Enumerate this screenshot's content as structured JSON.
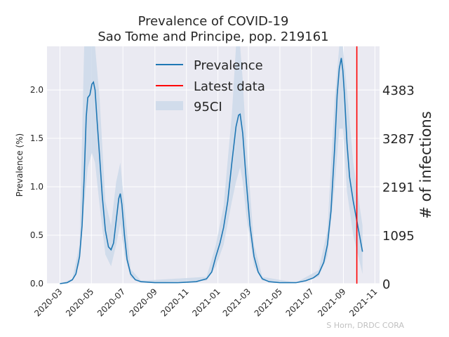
{
  "chart_data": {
    "type": "line",
    "title": "Prevalence of COVID-19",
    "subtitle": "Sao Tome and Principe, pop. 219161",
    "ylabel": "Prevalence (%)",
    "y2label": "# of infections",
    "credit": "S Horn, DRDC CORA",
    "xlim": [
      "2020-02-05",
      "2021-11-10"
    ],
    "ylim": [
      0,
      2.45
    ],
    "x_ticks": [
      "2020-03",
      "2020-05",
      "2020-07",
      "2020-09",
      "2020-11",
      "2021-01",
      "2021-03",
      "2021-05",
      "2021-07",
      "2021-09",
      "2021-11"
    ],
    "y_ticks": [
      0.0,
      0.5,
      1.0,
      1.5,
      2.0
    ],
    "y_tick_labels": [
      "0.0",
      "0.5",
      "1.0",
      "1.5",
      "2.0"
    ],
    "y2_ticks": [
      0,
      1095,
      2191,
      3287,
      4383
    ],
    "y2_tick_labels": [
      "0",
      "1095",
      "2191",
      "3287",
      "4383"
    ],
    "grid": true,
    "legend_position": "top-center",
    "legend": [
      "Prevalence",
      "Latest data",
      "95CI"
    ],
    "colors": {
      "prevalence": "#1f77b4",
      "latest": "#ff0000",
      "ci": "#cbd8e8",
      "grid": "#ffffff",
      "plot_bg": "#eaeaf2",
      "credit": "#c0c0c0"
    },
    "latest_date": "2021-09-27",
    "series": [
      {
        "name": "Prevalence",
        "points": [
          [
            "2020-03-01",
            0.0
          ],
          [
            "2020-03-15",
            0.01
          ],
          [
            "2020-03-25",
            0.04
          ],
          [
            "2020-04-01",
            0.1
          ],
          [
            "2020-04-08",
            0.28
          ],
          [
            "2020-04-13",
            0.6
          ],
          [
            "2020-04-17",
            1.1
          ],
          [
            "2020-04-21",
            1.72
          ],
          [
            "2020-04-24",
            1.92
          ],
          [
            "2020-04-28",
            1.95
          ],
          [
            "2020-05-02",
            2.06
          ],
          [
            "2020-05-05",
            2.08
          ],
          [
            "2020-05-08",
            2.0
          ],
          [
            "2020-05-12",
            1.68
          ],
          [
            "2020-05-17",
            1.3
          ],
          [
            "2020-05-22",
            0.9
          ],
          [
            "2020-05-28",
            0.55
          ],
          [
            "2020-06-03",
            0.38
          ],
          [
            "2020-06-08",
            0.35
          ],
          [
            "2020-06-13",
            0.42
          ],
          [
            "2020-06-18",
            0.65
          ],
          [
            "2020-06-23",
            0.88
          ],
          [
            "2020-06-26",
            0.93
          ],
          [
            "2020-06-29",
            0.82
          ],
          [
            "2020-07-04",
            0.5
          ],
          [
            "2020-07-09",
            0.25
          ],
          [
            "2020-07-16",
            0.1
          ],
          [
            "2020-07-25",
            0.04
          ],
          [
            "2020-08-05",
            0.02
          ],
          [
            "2020-09-01",
            0.01
          ],
          [
            "2020-10-15",
            0.01
          ],
          [
            "2020-11-20",
            0.02
          ],
          [
            "2020-12-10",
            0.05
          ],
          [
            "2020-12-20",
            0.12
          ],
          [
            "2020-12-28",
            0.28
          ],
          [
            "2021-01-05",
            0.42
          ],
          [
            "2021-01-12",
            0.58
          ],
          [
            "2021-01-20",
            0.85
          ],
          [
            "2021-01-28",
            1.25
          ],
          [
            "2021-02-05",
            1.62
          ],
          [
            "2021-02-10",
            1.74
          ],
          [
            "2021-02-13",
            1.75
          ],
          [
            "2021-02-18",
            1.55
          ],
          [
            "2021-02-25",
            1.05
          ],
          [
            "2021-03-04",
            0.6
          ],
          [
            "2021-03-12",
            0.28
          ],
          [
            "2021-03-20",
            0.12
          ],
          [
            "2021-03-28",
            0.05
          ],
          [
            "2021-04-10",
            0.02
          ],
          [
            "2021-05-01",
            0.01
          ],
          [
            "2021-06-01",
            0.01
          ],
          [
            "2021-06-20",
            0.03
          ],
          [
            "2021-07-05",
            0.06
          ],
          [
            "2021-07-15",
            0.1
          ],
          [
            "2021-07-25",
            0.22
          ],
          [
            "2021-08-01",
            0.4
          ],
          [
            "2021-08-08",
            0.75
          ],
          [
            "2021-08-15",
            1.4
          ],
          [
            "2021-08-20",
            1.95
          ],
          [
            "2021-08-24",
            2.22
          ],
          [
            "2021-08-28",
            2.33
          ],
          [
            "2021-08-31",
            2.2
          ],
          [
            "2021-09-03",
            1.95
          ],
          [
            "2021-09-08",
            1.45
          ],
          [
            "2021-09-13",
            1.1
          ],
          [
            "2021-09-20",
            0.85
          ],
          [
            "2021-09-27",
            0.65
          ],
          [
            "2021-10-08",
            0.33
          ]
        ]
      },
      {
        "name": "95CI",
        "points": [
          [
            "2020-03-01",
            0.0,
            0.0
          ],
          [
            "2020-03-25",
            0.03,
            0.05
          ],
          [
            "2020-04-08",
            0.2,
            0.4
          ],
          [
            "2020-04-17",
            0.8,
            2.45
          ],
          [
            "2020-04-24",
            1.2,
            2.45
          ],
          [
            "2020-05-02",
            1.35,
            2.45
          ],
          [
            "2020-05-08",
            1.25,
            2.45
          ],
          [
            "2020-05-17",
            0.8,
            1.9
          ],
          [
            "2020-05-28",
            0.3,
            0.85
          ],
          [
            "2020-06-08",
            0.18,
            0.6
          ],
          [
            "2020-06-18",
            0.4,
            1.05
          ],
          [
            "2020-06-26",
            0.62,
            1.25
          ],
          [
            "2020-07-04",
            0.3,
            0.8
          ],
          [
            "2020-07-16",
            0.06,
            0.15
          ],
          [
            "2020-08-05",
            0.01,
            0.03
          ],
          [
            "2020-12-10",
            0.03,
            0.07
          ],
          [
            "2020-12-28",
            0.18,
            0.4
          ],
          [
            "2021-01-12",
            0.4,
            0.8
          ],
          [
            "2021-01-28",
            0.85,
            1.75
          ],
          [
            "2021-02-05",
            1.05,
            2.45
          ],
          [
            "2021-02-13",
            1.2,
            2.45
          ],
          [
            "2021-02-18",
            1.05,
            2.1
          ],
          [
            "2021-02-25",
            0.7,
            1.45
          ],
          [
            "2021-03-12",
            0.18,
            0.4
          ],
          [
            "2021-03-28",
            0.03,
            0.07
          ],
          [
            "2021-06-01",
            0.01,
            0.01
          ],
          [
            "2021-07-15",
            0.07,
            0.14
          ],
          [
            "2021-08-01",
            0.28,
            0.55
          ],
          [
            "2021-08-15",
            1.0,
            1.9
          ],
          [
            "2021-08-24",
            1.6,
            2.45
          ],
          [
            "2021-08-31",
            1.6,
            2.45
          ],
          [
            "2021-09-08",
            0.95,
            2.0
          ],
          [
            "2021-09-20",
            0.5,
            1.25
          ],
          [
            "2021-10-08",
            0.1,
            0.6
          ]
        ]
      }
    ]
  }
}
